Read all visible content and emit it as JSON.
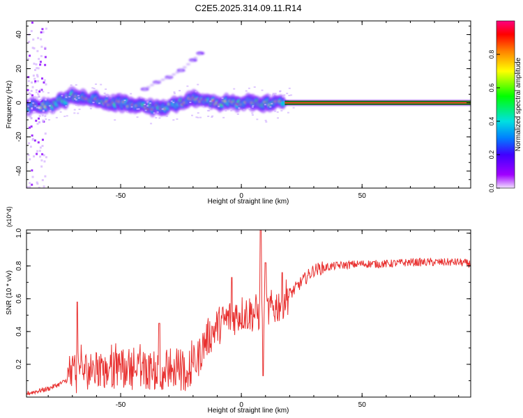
{
  "title": "C2E5.2025.314.09.11.R14",
  "chart_data": [
    {
      "type": "heatmap",
      "xlabel": "Height of straight line (km)",
      "ylabel": "Frequency (Hz)",
      "xlim": [
        -89,
        95
      ],
      "ylim": [
        -50,
        48
      ],
      "xticks": [
        -50,
        0,
        50
      ],
      "yticks": [
        -40,
        -20,
        0,
        20,
        40
      ],
      "colorbar": {
        "label": "Normalized spectral amplitude",
        "range": [
          0,
          1
        ],
        "ticks": [
          "0.0",
          "0.2",
          "0.4",
          "0.6",
          "0.8"
        ]
      },
      "ridge": [
        [
          -89,
          -2
        ],
        [
          -80,
          -2
        ],
        [
          -75,
          1
        ],
        [
          -70,
          4
        ],
        [
          -65,
          3
        ],
        [
          -60,
          2
        ],
        [
          -55,
          -1
        ],
        [
          -50,
          0
        ],
        [
          -45,
          -2
        ],
        [
          -40,
          -2
        ],
        [
          -35,
          -3
        ],
        [
          -30,
          -2
        ],
        [
          -25,
          0
        ],
        [
          -20,
          2
        ],
        [
          -15,
          1
        ],
        [
          -10,
          0
        ],
        [
          -5,
          0
        ],
        [
          0,
          0
        ],
        [
          5,
          0
        ],
        [
          10,
          -1
        ],
        [
          15,
          0
        ],
        [
          20,
          0
        ],
        [
          50,
          0
        ],
        [
          95,
          0
        ]
      ],
      "secondary_branch": [
        [
          -40,
          8
        ],
        [
          -35,
          12
        ],
        [
          -30,
          15
        ],
        [
          -25,
          19
        ],
        [
          -20,
          25
        ],
        [
          -17,
          29
        ]
      ],
      "steady_line": {
        "x": [
          18,
          95
        ],
        "y": 0
      }
    },
    {
      "type": "line",
      "xlabel": "Height of straight line (km)",
      "ylabel": "SNR (10 * v/v)",
      "y_multiplier": "(x10^4)",
      "xlim": [
        -89,
        95
      ],
      "ylim": [
        0,
        1.02
      ],
      "xticks": [
        -50,
        0,
        50
      ],
      "yticks": [
        "0.2",
        "0.4",
        "0.6",
        "0.8",
        "1.0"
      ],
      "series": [
        {
          "color": "#e8302f",
          "trend": [
            [
              -89,
              0.02
            ],
            [
              -80,
              0.05
            ],
            [
              -75,
              0.08
            ],
            [
              -70,
              0.12
            ],
            [
              -68,
              0.13
            ],
            [
              -65,
              0.15
            ],
            [
              -60,
              0.15
            ],
            [
              -50,
              0.15
            ],
            [
              -40,
              0.15
            ],
            [
              -30,
              0.15
            ],
            [
              -22,
              0.14
            ],
            [
              -18,
              0.22
            ],
            [
              -15,
              0.33
            ],
            [
              -10,
              0.42
            ],
            [
              -5,
              0.47
            ],
            [
              0,
              0.5
            ],
            [
              5,
              0.5
            ],
            [
              10,
              0.5
            ],
            [
              15,
              0.55
            ],
            [
              20,
              0.62
            ],
            [
              25,
              0.7
            ],
            [
              30,
              0.77
            ],
            [
              35,
              0.79
            ],
            [
              40,
              0.8
            ],
            [
              50,
              0.81
            ],
            [
              60,
              0.81
            ],
            [
              70,
              0.82
            ],
            [
              80,
              0.82
            ],
            [
              90,
              0.82
            ],
            [
              95,
              0.81
            ]
          ],
          "spikes": [
            [
              -68,
              0.58
            ],
            [
              8,
              1.02
            ],
            [
              10,
              0.82
            ],
            [
              17,
              0.76
            ],
            [
              -34,
              0.45
            ],
            [
              -4,
              0.73
            ]
          ],
          "dips": [
            [
              9,
              0.13
            ]
          ]
        }
      ]
    }
  ]
}
